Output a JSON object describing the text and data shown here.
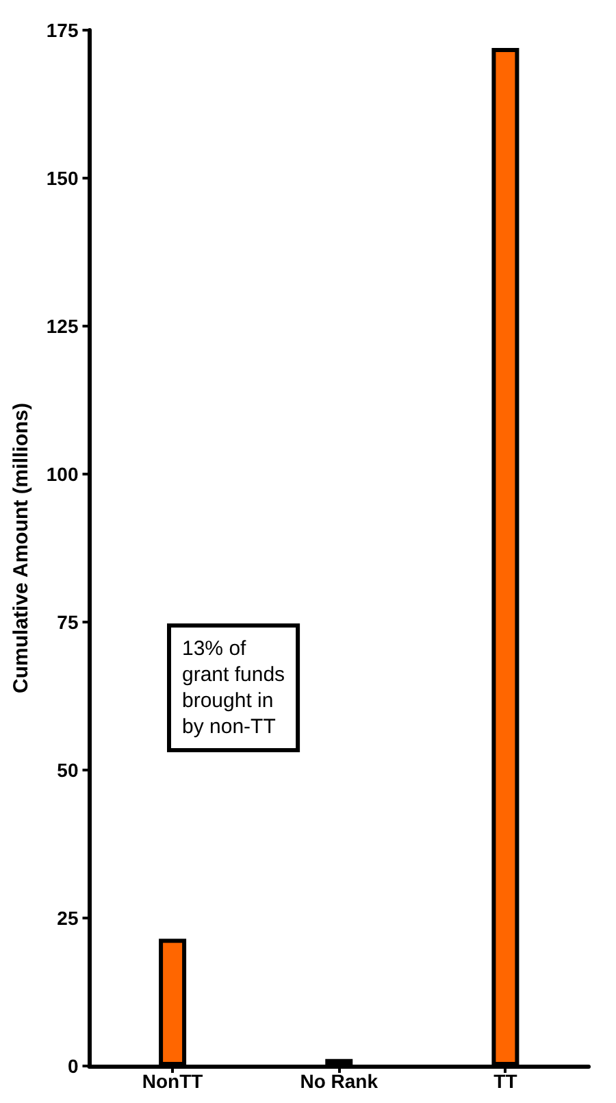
{
  "chart_data": {
    "type": "bar",
    "ylabel": "Cumulative Amount (millions)",
    "categories": [
      "NonTT",
      "No Rank",
      "TT"
    ],
    "values": [
      21.5,
      1.2,
      172
    ],
    "color": "#ff6600",
    "ylim": [
      0,
      175
    ],
    "yticks": [
      0,
      25,
      50,
      75,
      100,
      125,
      150,
      175
    ],
    "grid": false,
    "annotations": [
      "13% of\ngrant funds\nbrought in\nby non-TT"
    ]
  }
}
